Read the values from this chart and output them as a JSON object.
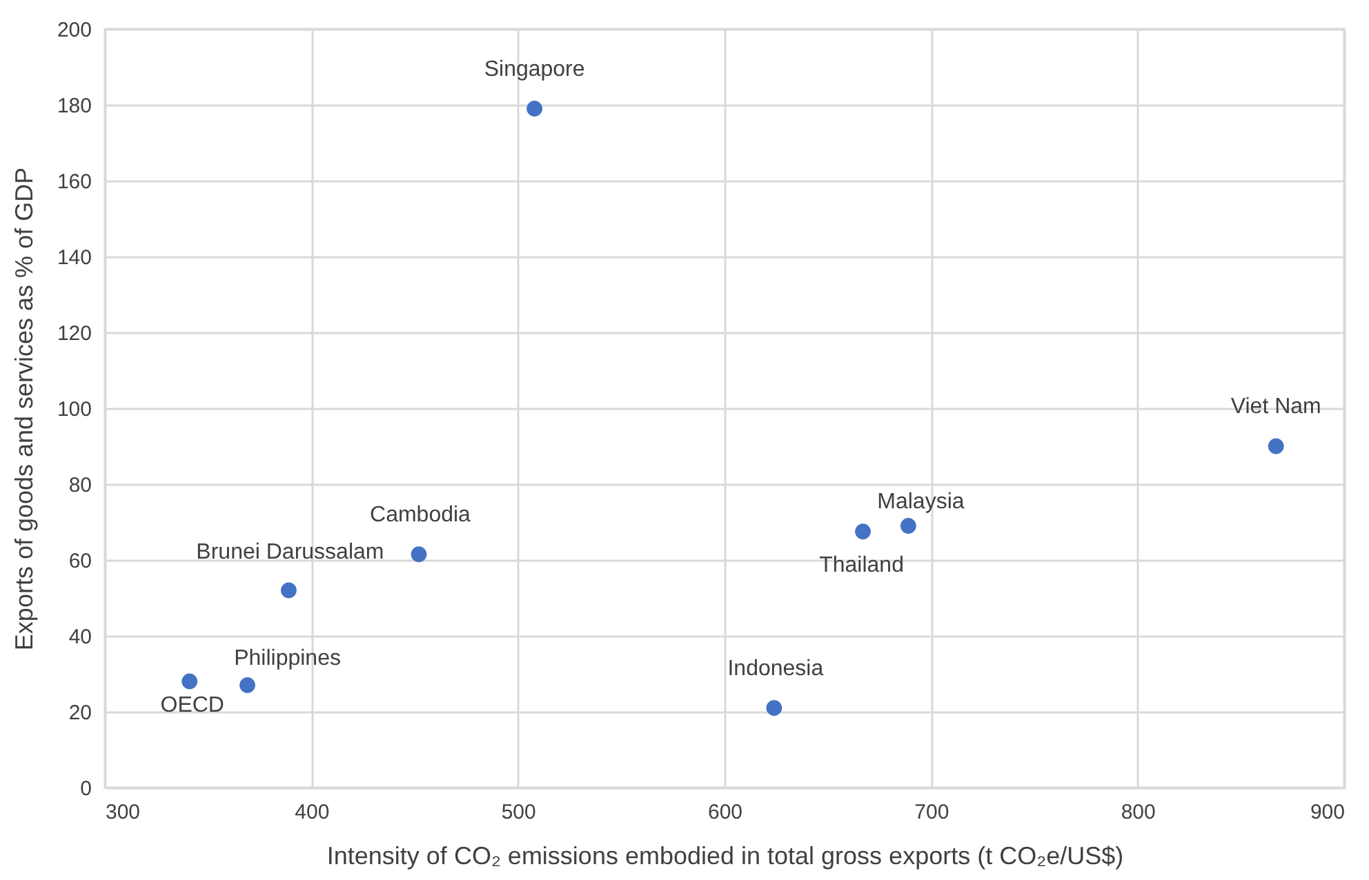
{
  "chart_data": {
    "type": "scatter",
    "xlabel": "Intensity of CO₂ emissions embodied in total gross exports (t CO₂e/US$)",
    "ylabel": "Exports of goods and services as % of GDP",
    "x": [
      508,
      867,
      689,
      667,
      452,
      389,
      369,
      341,
      624
    ],
    "series": [
      {
        "color": "#4472c4",
        "values": [
          179,
          90,
          69,
          67.5,
          61.5,
          52,
          27,
          28,
          21
        ]
      }
    ],
    "annotations": [
      {
        "text": "Singapore",
        "x": 508,
        "y": 179
      },
      {
        "text": "Viet Nam",
        "x": 867,
        "y": 90
      },
      {
        "text": "Malaysia",
        "x": 689,
        "y": 69
      },
      {
        "text": "Thailand",
        "x": 667,
        "y": 67.5
      },
      {
        "text": "Cambodia",
        "x": 452,
        "y": 61.5
      },
      {
        "text": "Brunei Darussalam",
        "x": 389,
        "y": 52
      },
      {
        "text": "Philippines",
        "x": 369,
        "y": 27
      },
      {
        "text": "OECD",
        "x": 341,
        "y": 28
      },
      {
        "text": "Indonesia",
        "x": 624,
        "y": 21
      }
    ],
    "xlim": [
      300,
      900
    ],
    "xticks": [
      300,
      400,
      500,
      600,
      700,
      800,
      900
    ],
    "ylim": [
      0,
      200
    ],
    "yticks": [
      0,
      20,
      40,
      60,
      80,
      100,
      120,
      140,
      160,
      180,
      200
    ],
    "grid": true,
    "marker": "circle"
  }
}
